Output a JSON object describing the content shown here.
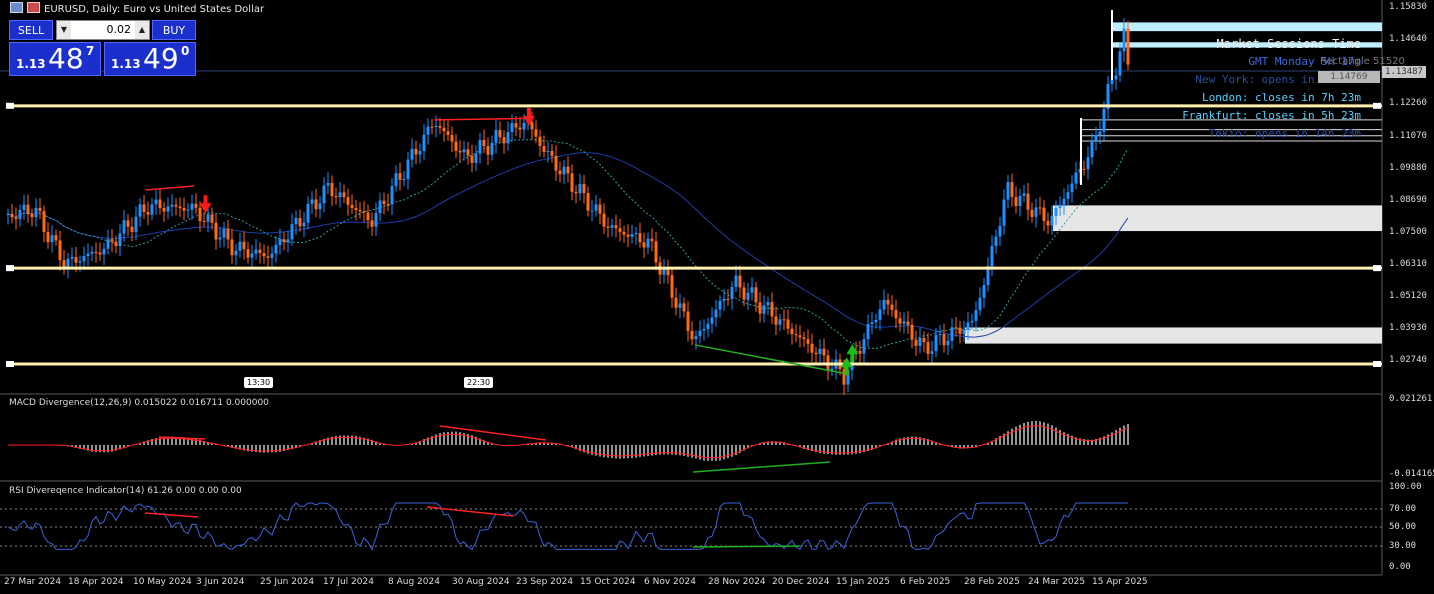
{
  "window": {
    "title": "EURUSD, Daily:  Euro vs United States Dollar"
  },
  "trade_panel": {
    "sell_label": "SELL",
    "buy_label": "BUY",
    "lot_value": "0.02",
    "bid": {
      "prefix": "1.13",
      "big": "48",
      "sup": "7"
    },
    "ask": {
      "prefix": "1.13",
      "big": "49",
      "sup": "0"
    }
  },
  "session_panel": {
    "title": "Market Sessions Time",
    "gmt": "GMT Monday 5H 17m",
    "lines": [
      {
        "text": "New York: opens in 8h 23m",
        "color": "#2b4ea0"
      },
      {
        "text": "London: closes in 7h 23m",
        "color": "#58d0ff"
      },
      {
        "text": "Frankfurt: closes in 5h 23m",
        "color": "#58d0ff"
      },
      {
        "text": "Tokio: opens in 14h 23m",
        "color": "#2b4ea0"
      }
    ]
  },
  "overlay_labels": {
    "rectangle": "Rectangle 51520",
    "tooltip_price": "1.14769"
  },
  "price_axis": {
    "ticks": [
      "1.15830",
      "1.14640",
      "1.12260",
      "1.11070",
      "1.09880",
      "1.08690",
      "1.07500",
      "1.06310",
      "1.05120",
      "1.03930",
      "1.02740"
    ],
    "current_price": "1.13487"
  },
  "macd": {
    "label": "MACD Divergence(12,26,9) 0.015022 0.016711 0.000000",
    "axis_top": "0.021261",
    "axis_bottom": "-0.014165"
  },
  "rsi": {
    "label": "RSI Divereqence Indicator(14) 61.26 0.00 0.00 0.00",
    "ticks": [
      "100.00",
      "70.00",
      "50.00",
      "30.00",
      "0.00"
    ]
  },
  "date_axis": [
    "27 Mar 2024",
    "18 Apr 2024",
    "10 May 2024",
    "3 Jun 2024",
    "25 Jun 2024",
    "17 Jul 2024",
    "8 Aug 2024",
    "30 Aug 2024",
    "23 Sep 2024",
    "15 Oct 2024",
    "6 Nov 2024",
    "28 Nov 2024",
    "20 Dec 2024",
    "15 Jan 2025",
    "6 Feb 2025",
    "28 Feb 2025",
    "24 Mar 2025",
    "15 Apr 2025"
  ],
  "time_tags": [
    "13:30",
    "22:30"
  ],
  "colors": {
    "bull": "#1e90ff",
    "bear": "#ff6a1a",
    "support": "#fff0b0",
    "ma_slow": "#1e3ca8",
    "ma_fast": "#2fa0a0",
    "zone": "#e6e6e6",
    "divergence_bear": "#ff2020",
    "divergence_bull": "#20b020"
  },
  "chart_data": {
    "type": "candlestick",
    "symbol": "EURUSD",
    "timeframe": "Daily",
    "y_range": [
      1.0195,
      1.1615
    ],
    "x_range": [
      "27 Mar 2024",
      "23 Apr 2025"
    ],
    "anchors": [
      [
        "2024-03-27",
        1.082
      ],
      [
        "2024-04-05",
        1.085
      ],
      [
        "2024-04-16",
        1.064
      ],
      [
        "2024-04-30",
        1.07
      ],
      [
        "2024-05-15",
        1.086
      ],
      [
        "2024-05-31",
        1.085
      ],
      [
        "2024-06-14",
        1.07
      ],
      [
        "2024-06-26",
        1.067
      ],
      [
        "2024-07-17",
        1.093
      ],
      [
        "2024-08-01",
        1.08
      ],
      [
        "2024-08-23",
        1.118
      ],
      [
        "2024-09-03",
        1.104
      ],
      [
        "2024-09-24",
        1.118
      ],
      [
        "2024-10-01",
        1.106
      ],
      [
        "2024-10-23",
        1.078
      ],
      [
        "2024-11-06",
        1.072
      ],
      [
        "2024-11-22",
        1.035
      ],
      [
        "2024-12-06",
        1.057
      ],
      [
        "2025-01-13",
        1.022
      ],
      [
        "2025-01-27",
        1.05
      ],
      [
        "2025-02-10",
        1.032
      ],
      [
        "2025-02-27",
        1.042
      ],
      [
        "2025-03-04",
        1.061
      ],
      [
        "2025-03-11",
        1.092
      ],
      [
        "2025-03-26",
        1.08
      ],
      [
        "2025-04-10",
        1.108
      ],
      [
        "2025-04-21",
        1.15
      ],
      [
        "2025-04-23",
        1.134
      ]
    ],
    "support_levels": [
      1.1238,
      1.0625,
      1.0263
    ],
    "resistance_zones": [
      [
        1.1553,
        1.152
      ],
      [
        1.1478,
        1.1458
      ]
    ],
    "demand_zones": [
      [
        1.0862,
        1.0765
      ],
      [
        1.0401,
        1.034
      ]
    ],
    "bearish_divergences": [
      [
        [
          "2024-05-14",
          1.092
        ],
        [
          "2024-05-31",
          1.0935
        ]
      ],
      [
        [
          "2024-08-23",
          1.1185
        ],
        [
          "2024-09-23",
          1.119
        ]
      ]
    ],
    "bullish_divergences": [
      [
        [
          "2024-11-22",
          1.0335
        ],
        [
          "2025-01-13",
          1.0228
        ]
      ]
    ],
    "sell_arrows": [
      [
        "2024-06-04",
        1.087
      ],
      [
        "2024-09-25",
        1.12
      ]
    ],
    "buy_arrows": [
      [
        "2025-01-14",
        1.025
      ],
      [
        "2025-01-16",
        1.03
      ]
    ]
  }
}
